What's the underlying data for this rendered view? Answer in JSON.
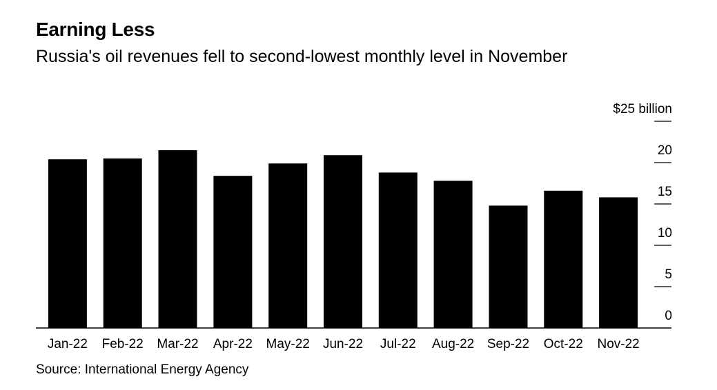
{
  "title": "Earning Less",
  "subtitle": "Russia's oil revenues fell to second-lowest monthly level in November",
  "source": "Source: International Energy Agency",
  "colors": {
    "bar": "#000000",
    "axis": "#000000",
    "background": "#ffffff"
  },
  "chart_data": {
    "type": "bar",
    "title": "Earning Less",
    "subtitle": "Russia's oil revenues fell to second-lowest monthly level in November",
    "categories": [
      "Jan-22",
      "Feb-22",
      "Mar-22",
      "Apr-22",
      "May-22",
      "Jun-22",
      "Jul-22",
      "Aug-22",
      "Sep-22",
      "Oct-22",
      "Nov-22"
    ],
    "values": [
      20.4,
      20.5,
      21.5,
      18.4,
      19.9,
      20.9,
      18.8,
      17.8,
      14.8,
      16.6,
      15.8
    ],
    "unit_label": "$25 billion",
    "y_ticks": [
      0,
      5,
      10,
      15,
      20,
      25
    ],
    "y_tick_labels": [
      "0",
      "5",
      "10",
      "15",
      "20",
      "$25 billion"
    ],
    "ylim": [
      0,
      25
    ],
    "y_axis_position": "right",
    "grid": false,
    "legend": "none"
  }
}
